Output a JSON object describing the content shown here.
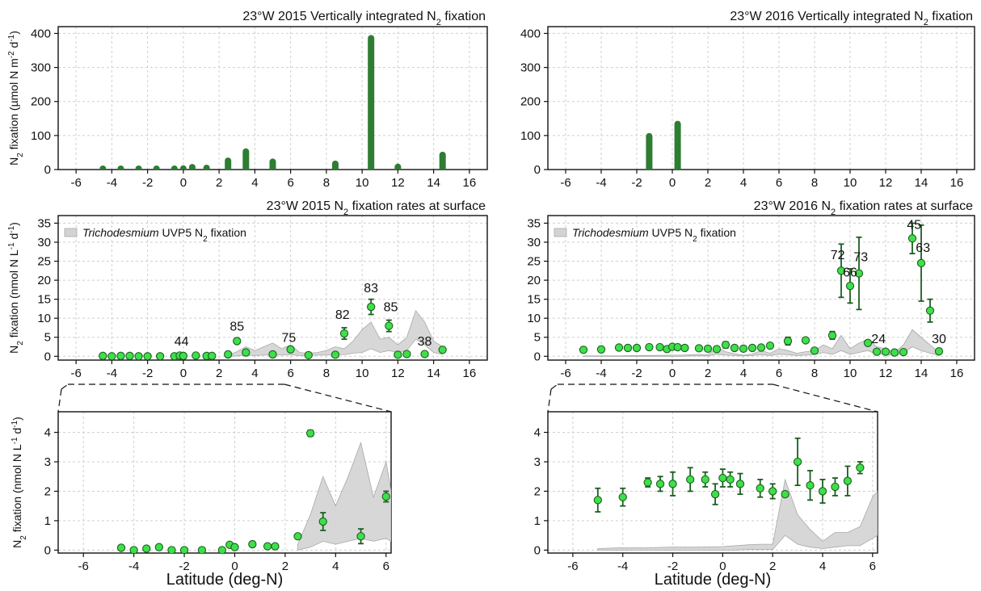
{
  "colors": {
    "bar": "#2e7d32",
    "point_fill": "#3ee04a",
    "point_stroke": "#1b5e20",
    "errorbar": "#1b5e20",
    "band_fill": "#d3d3d3",
    "band_stroke": "#a8a8a8"
  },
  "legend": {
    "italic": "Trichodesmium",
    "rest": " UVP5 N",
    "sub": "2",
    "tail": " fixation"
  },
  "xlabel": "Latitude (deg-N)",
  "chart_data": [
    {
      "id": "p1",
      "type": "bar",
      "title": {
        "pre": "23°W 2015 Vertically integrated N",
        "sub": "2",
        "post": " fixation"
      },
      "ylabel": "N2 fixation (µmol N m-2 d-1)",
      "xlim": [
        -7,
        17
      ],
      "ylim": [
        0,
        420
      ],
      "xticks": [
        -6,
        -4,
        -2,
        0,
        2,
        4,
        6,
        8,
        10,
        12,
        14,
        16
      ],
      "yticks": [
        0,
        100,
        200,
        300,
        400
      ],
      "x": [
        -4.5,
        -3.5,
        -2.5,
        -1.5,
        -0.5,
        0,
        0.5,
        1.3,
        2.5,
        3.5,
        5,
        8.5,
        10.5,
        12,
        14.5
      ],
      "values": [
        8,
        8,
        6,
        5,
        7,
        10,
        14,
        12,
        33,
        60,
        30,
        24,
        393,
        15,
        50
      ]
    },
    {
      "id": "p2",
      "type": "bar",
      "title": {
        "pre": "23°W 2016 Vertically integrated N",
        "sub": "2",
        "post": " fixation"
      },
      "xlim": [
        -7,
        17
      ],
      "ylim": [
        0,
        420
      ],
      "xticks": [
        -6,
        -4,
        -2,
        0,
        2,
        4,
        6,
        8,
        10,
        12,
        14,
        16
      ],
      "yticks": [
        0,
        100,
        200,
        300,
        400
      ],
      "x": [
        -1.3,
        0.3
      ],
      "values": [
        105,
        141
      ]
    },
    {
      "id": "p3",
      "type": "scatter",
      "title": {
        "pre": "23°W 2015 N",
        "sub": "2",
        "post": " fixation rates at surface"
      },
      "ylabel": "N2 fixation (nmol N L-1 d-1)",
      "xlim": [
        -7,
        17
      ],
      "ylim": [
        -1,
        37
      ],
      "xticks": [
        -6,
        -4,
        -2,
        0,
        2,
        4,
        6,
        8,
        10,
        12,
        14,
        16
      ],
      "yticks": [
        0,
        5,
        10,
        15,
        20,
        25,
        30,
        35
      ],
      "legend": "top-left",
      "points": [
        {
          "x": -4.5,
          "y": 0.1,
          "e": 0
        },
        {
          "x": -4.0,
          "y": 0.0,
          "e": 0
        },
        {
          "x": -3.5,
          "y": 0.1,
          "e": 0
        },
        {
          "x": -3.0,
          "y": 0.1,
          "e": 0
        },
        {
          "x": -2.5,
          "y": 0.0,
          "e": 0
        },
        {
          "x": -2.0,
          "y": 0.0,
          "e": 0
        },
        {
          "x": -1.3,
          "y": 0.0,
          "e": 0
        },
        {
          "x": -0.5,
          "y": 0.0,
          "e": 0
        },
        {
          "x": -0.2,
          "y": 0.2,
          "e": 0
        },
        {
          "x": 0.0,
          "y": 0.1,
          "e": 0
        },
        {
          "x": 0.7,
          "y": 0.2,
          "e": 0
        },
        {
          "x": 1.3,
          "y": 0.1,
          "e": 0
        },
        {
          "x": 1.6,
          "y": 0.1,
          "e": 0
        },
        {
          "x": 2.5,
          "y": 0.5,
          "e": 0
        },
        {
          "x": 3.0,
          "y": 4.0,
          "e": 0.2
        },
        {
          "x": 3.5,
          "y": 1.0,
          "e": 0.3
        },
        {
          "x": 5.0,
          "y": 0.5,
          "e": 0.2
        },
        {
          "x": 6.0,
          "y": 1.8,
          "e": 0.2
        },
        {
          "x": 7.0,
          "y": 0.3,
          "e": 0
        },
        {
          "x": 8.5,
          "y": 0.4,
          "e": 0
        },
        {
          "x": 9.0,
          "y": 6.0,
          "e": 1.5
        },
        {
          "x": 10.5,
          "y": 13.0,
          "e": 2.0
        },
        {
          "x": 11.5,
          "y": 8.0,
          "e": 1.5
        },
        {
          "x": 12.0,
          "y": 0.4,
          "e": 0
        },
        {
          "x": 12.5,
          "y": 0.6,
          "e": 0
        },
        {
          "x": 13.5,
          "y": 0.6,
          "e": 0
        },
        {
          "x": 14.5,
          "y": 1.7,
          "e": 0
        }
      ],
      "annotations": [
        {
          "text": "44",
          "x": -0.1,
          "y": 2.8
        },
        {
          "text": "85",
          "x": 3.0,
          "y": 6.8
        },
        {
          "text": "75",
          "x": 5.9,
          "y": 3.8
        },
        {
          "text": "82",
          "x": 8.9,
          "y": 9.8
        },
        {
          "text": "83",
          "x": 10.5,
          "y": 16.8
        },
        {
          "text": "85",
          "x": 11.6,
          "y": 11.8
        },
        {
          "text": "38",
          "x": 13.5,
          "y": 2.8
        }
      ],
      "band": {
        "x": [
          2.5,
          3,
          3.5,
          4,
          4.5,
          5,
          5.5,
          6,
          6.5,
          7,
          7.5,
          8,
          8.5,
          9,
          9.5,
          10,
          10.5,
          11,
          11.5,
          12,
          12.5,
          13,
          13.5,
          14,
          14.5
        ],
        "upper": [
          0.2,
          1.2,
          2.5,
          1.5,
          2.5,
          3.5,
          2.0,
          3.0,
          1.0,
          0.8,
          1.0,
          1.5,
          2.5,
          2.0,
          4.0,
          7.0,
          9.0,
          4.5,
          5.0,
          3.0,
          5.0,
          12.0,
          9.0,
          4.0,
          2.5
        ],
        "lower": [
          0,
          0.1,
          0.3,
          0.2,
          0.3,
          0.4,
          0.3,
          0.4,
          0.2,
          0.2,
          0.3,
          0.3,
          0.5,
          0.4,
          0.8,
          1.0,
          2.0,
          1.0,
          1.5,
          1.0,
          1.5,
          4.5,
          3.0,
          1.0,
          0.5
        ]
      }
    },
    {
      "id": "p4",
      "type": "scatter",
      "title": {
        "pre": "23°W 2016 N",
        "sub": "2",
        "post": " fixation rates at surface"
      },
      "xlim": [
        -7,
        17
      ],
      "ylim": [
        -1,
        37
      ],
      "xticks": [
        -6,
        -4,
        -2,
        0,
        2,
        4,
        6,
        8,
        10,
        12,
        14,
        16
      ],
      "yticks": [
        0,
        5,
        10,
        15,
        20,
        25,
        30,
        35
      ],
      "legend": "top-left",
      "points": [
        {
          "x": -5.0,
          "y": 1.7,
          "e": 0.4
        },
        {
          "x": -4.0,
          "y": 1.8,
          "e": 0.3
        },
        {
          "x": -3.0,
          "y": 2.3,
          "e": 0.2
        },
        {
          "x": -2.5,
          "y": 2.2,
          "e": 0.3
        },
        {
          "x": -2.0,
          "y": 2.2,
          "e": 0.4
        },
        {
          "x": -1.3,
          "y": 2.4,
          "e": 0.4
        },
        {
          "x": -0.7,
          "y": 2.4,
          "e": 0.3
        },
        {
          "x": -0.3,
          "y": 1.9,
          "e": 0.4
        },
        {
          "x": 0.0,
          "y": 2.5,
          "e": 0.3
        },
        {
          "x": 0.3,
          "y": 2.4,
          "e": 0.3
        },
        {
          "x": 0.7,
          "y": 2.2,
          "e": 0.4
        },
        {
          "x": 1.5,
          "y": 2.1,
          "e": 0.3
        },
        {
          "x": 2.0,
          "y": 2.0,
          "e": 0.3
        },
        {
          "x": 2.5,
          "y": 1.9,
          "e": 0.1
        },
        {
          "x": 3.0,
          "y": 3.0,
          "e": 0.8
        },
        {
          "x": 3.5,
          "y": 2.2,
          "e": 0.5
        },
        {
          "x": 4.0,
          "y": 2.0,
          "e": 0.4
        },
        {
          "x": 4.5,
          "y": 2.2,
          "e": 0.3
        },
        {
          "x": 5.0,
          "y": 2.3,
          "e": 0.5
        },
        {
          "x": 5.5,
          "y": 2.8,
          "e": 0.2
        },
        {
          "x": 6.5,
          "y": 4.0,
          "e": 1.0
        },
        {
          "x": 7.5,
          "y": 4.2,
          "e": 0.5
        },
        {
          "x": 8.0,
          "y": 1.5,
          "e": 0.3
        },
        {
          "x": 9.0,
          "y": 5.5,
          "e": 1.0
        },
        {
          "x": 9.5,
          "y": 22.5,
          "e": 7.0
        },
        {
          "x": 10.0,
          "y": 18.5,
          "e": 4.5
        },
        {
          "x": 10.5,
          "y": 21.8,
          "e": 9.5
        },
        {
          "x": 11.0,
          "y": 3.5,
          "e": 0.5
        },
        {
          "x": 11.5,
          "y": 1.2,
          "e": 0
        },
        {
          "x": 12.0,
          "y": 1.2,
          "e": 0
        },
        {
          "x": 12.5,
          "y": 1.0,
          "e": 0
        },
        {
          "x": 13.0,
          "y": 1.1,
          "e": 0
        },
        {
          "x": 13.5,
          "y": 31.0,
          "e": 4.0
        },
        {
          "x": 14.0,
          "y": 24.5,
          "e": 10.0
        },
        {
          "x": 14.5,
          "y": 12.0,
          "e": 3.0
        },
        {
          "x": 15.0,
          "y": 1.3,
          "e": 0
        }
      ],
      "annotations": [
        {
          "text": "72",
          "x": 9.3,
          "y": 25.5
        },
        {
          "text": "66",
          "x": 10.0,
          "y": 21.0
        },
        {
          "text": "73",
          "x": 10.6,
          "y": 25.0
        },
        {
          "text": "24",
          "x": 11.6,
          "y": 3.5
        },
        {
          "text": "45",
          "x": 13.6,
          "y": 33.5
        },
        {
          "text": "63",
          "x": 14.1,
          "y": 27.5
        },
        {
          "text": "30",
          "x": 15.0,
          "y": 3.5
        }
      ],
      "band": {
        "x": [
          -5,
          -4,
          -3,
          -2,
          -1,
          0,
          0.5,
          1,
          1.5,
          2,
          2.5,
          3,
          3.5,
          4,
          4.5,
          5,
          5.5,
          6,
          6.5,
          7,
          7.5,
          8,
          8.5,
          9,
          9.5,
          10,
          10.5,
          11,
          11.5,
          12,
          12.5,
          13,
          13.5,
          14,
          14.5,
          15
        ],
        "upper": [
          0.1,
          0.1,
          0.1,
          0.2,
          0.2,
          0.3,
          0.3,
          0.4,
          0.5,
          0.4,
          2.4,
          1.2,
          0.7,
          0.3,
          0.6,
          1.5,
          0.8,
          2.0,
          1.5,
          0.8,
          1.2,
          1.5,
          3.0,
          2.0,
          5.5,
          2.0,
          3.5,
          4.5,
          2.5,
          2.0,
          1.0,
          3.0,
          7.0,
          5.0,
          3.0,
          1.0
        ],
        "lower": [
          0,
          0,
          0,
          0,
          0,
          0,
          0,
          0.1,
          0.1,
          0.1,
          0.5,
          0.3,
          0.2,
          0.1,
          0.2,
          0.4,
          0.2,
          0.5,
          0.4,
          0.2,
          0.3,
          0.4,
          1.0,
          0.5,
          1.5,
          0.5,
          1.0,
          1.5,
          0.5,
          0.5,
          0.2,
          0.8,
          2.5,
          1.5,
          0.8,
          0.2
        ]
      }
    },
    {
      "id": "p5",
      "type": "scatter",
      "ylabel": "N2 fixation (nmol N L-1 d-1)",
      "xlim": [
        -7,
        6.2
      ],
      "ylim": [
        -0.1,
        4.7
      ],
      "xticks": [
        -6,
        -4,
        -2,
        0,
        2,
        4,
        6
      ],
      "yticks": [
        0,
        1,
        2,
        3,
        4
      ],
      "points": [
        {
          "x": -4.5,
          "y": 0.08,
          "e": 0
        },
        {
          "x": -4.0,
          "y": 0.0,
          "e": 0
        },
        {
          "x": -3.5,
          "y": 0.05,
          "e": 0
        },
        {
          "x": -3.0,
          "y": 0.1,
          "e": 0
        },
        {
          "x": -2.5,
          "y": 0.0,
          "e": 0
        },
        {
          "x": -2.0,
          "y": 0.0,
          "e": 0
        },
        {
          "x": -1.3,
          "y": 0.0,
          "e": 0
        },
        {
          "x": -0.5,
          "y": 0.0,
          "e": 0
        },
        {
          "x": -0.2,
          "y": 0.18,
          "e": 0
        },
        {
          "x": 0.0,
          "y": 0.1,
          "e": 0
        },
        {
          "x": 0.7,
          "y": 0.2,
          "e": 0
        },
        {
          "x": 1.3,
          "y": 0.13,
          "e": 0
        },
        {
          "x": 1.6,
          "y": 0.13,
          "e": 0
        },
        {
          "x": 2.5,
          "y": 0.47,
          "e": 0
        },
        {
          "x": 3.0,
          "y": 3.97,
          "e": 0.1
        },
        {
          "x": 3.5,
          "y": 0.97,
          "e": 0.3
        },
        {
          "x": 5.0,
          "y": 0.47,
          "e": 0.25
        },
        {
          "x": 6.0,
          "y": 1.82,
          "e": 0.18
        }
      ],
      "band": {
        "x": [
          2.5,
          3,
          3.5,
          4,
          4.5,
          5,
          5.5,
          6,
          6.2
        ],
        "upper": [
          0.2,
          1.2,
          2.5,
          1.5,
          2.5,
          3.65,
          1.8,
          3.0,
          2.0
        ],
        "lower": [
          0,
          0.1,
          0.3,
          0.2,
          0.3,
          0.4,
          0.3,
          0.4,
          0.3
        ]
      }
    },
    {
      "id": "p6",
      "type": "scatter",
      "xlim": [
        -7,
        6.2
      ],
      "ylim": [
        -0.1,
        4.7
      ],
      "xticks": [
        -6,
        -4,
        -2,
        0,
        2,
        4,
        6
      ],
      "yticks": [
        0,
        1,
        2,
        3,
        4
      ],
      "points": [
        {
          "x": -5.0,
          "y": 1.7,
          "e": 0.4
        },
        {
          "x": -4.0,
          "y": 1.8,
          "e": 0.3
        },
        {
          "x": -3.0,
          "y": 2.3,
          "e": 0.15
        },
        {
          "x": -2.5,
          "y": 2.25,
          "e": 0.25
        },
        {
          "x": -2.0,
          "y": 2.25,
          "e": 0.4
        },
        {
          "x": -1.3,
          "y": 2.4,
          "e": 0.4
        },
        {
          "x": -0.7,
          "y": 2.4,
          "e": 0.25
        },
        {
          "x": -0.3,
          "y": 1.9,
          "e": 0.35
        },
        {
          "x": 0.0,
          "y": 2.45,
          "e": 0.3
        },
        {
          "x": 0.3,
          "y": 2.4,
          "e": 0.25
        },
        {
          "x": 0.7,
          "y": 2.25,
          "e": 0.35
        },
        {
          "x": 1.5,
          "y": 2.1,
          "e": 0.3
        },
        {
          "x": 2.0,
          "y": 2.0,
          "e": 0.25
        },
        {
          "x": 2.5,
          "y": 1.9,
          "e": 0.08
        },
        {
          "x": 3.0,
          "y": 3.0,
          "e": 0.8
        },
        {
          "x": 3.5,
          "y": 2.2,
          "e": 0.5
        },
        {
          "x": 4.0,
          "y": 2.0,
          "e": 0.4
        },
        {
          "x": 4.5,
          "y": 2.15,
          "e": 0.3
        },
        {
          "x": 5.0,
          "y": 2.35,
          "e": 0.5
        },
        {
          "x": 5.5,
          "y": 2.8,
          "e": 0.2
        }
      ],
      "band": {
        "x": [
          -5,
          -4,
          -3,
          -2,
          -1,
          0,
          0.5,
          1,
          1.5,
          2,
          2.5,
          3,
          3.5,
          4,
          4.5,
          5,
          5.5,
          6,
          6.2
        ],
        "upper": [
          0.05,
          0.08,
          0.08,
          0.1,
          0.1,
          0.12,
          0.15,
          0.18,
          0.2,
          0.2,
          2.4,
          1.2,
          0.7,
          0.3,
          0.6,
          0.6,
          0.8,
          1.8,
          2.0
        ],
        "lower": [
          0,
          0,
          0,
          0,
          0,
          0,
          0,
          0.02,
          0.02,
          0.02,
          0.5,
          0.2,
          0.1,
          0.05,
          0.1,
          0.15,
          0.15,
          0.4,
          0.5
        ]
      }
    }
  ]
}
